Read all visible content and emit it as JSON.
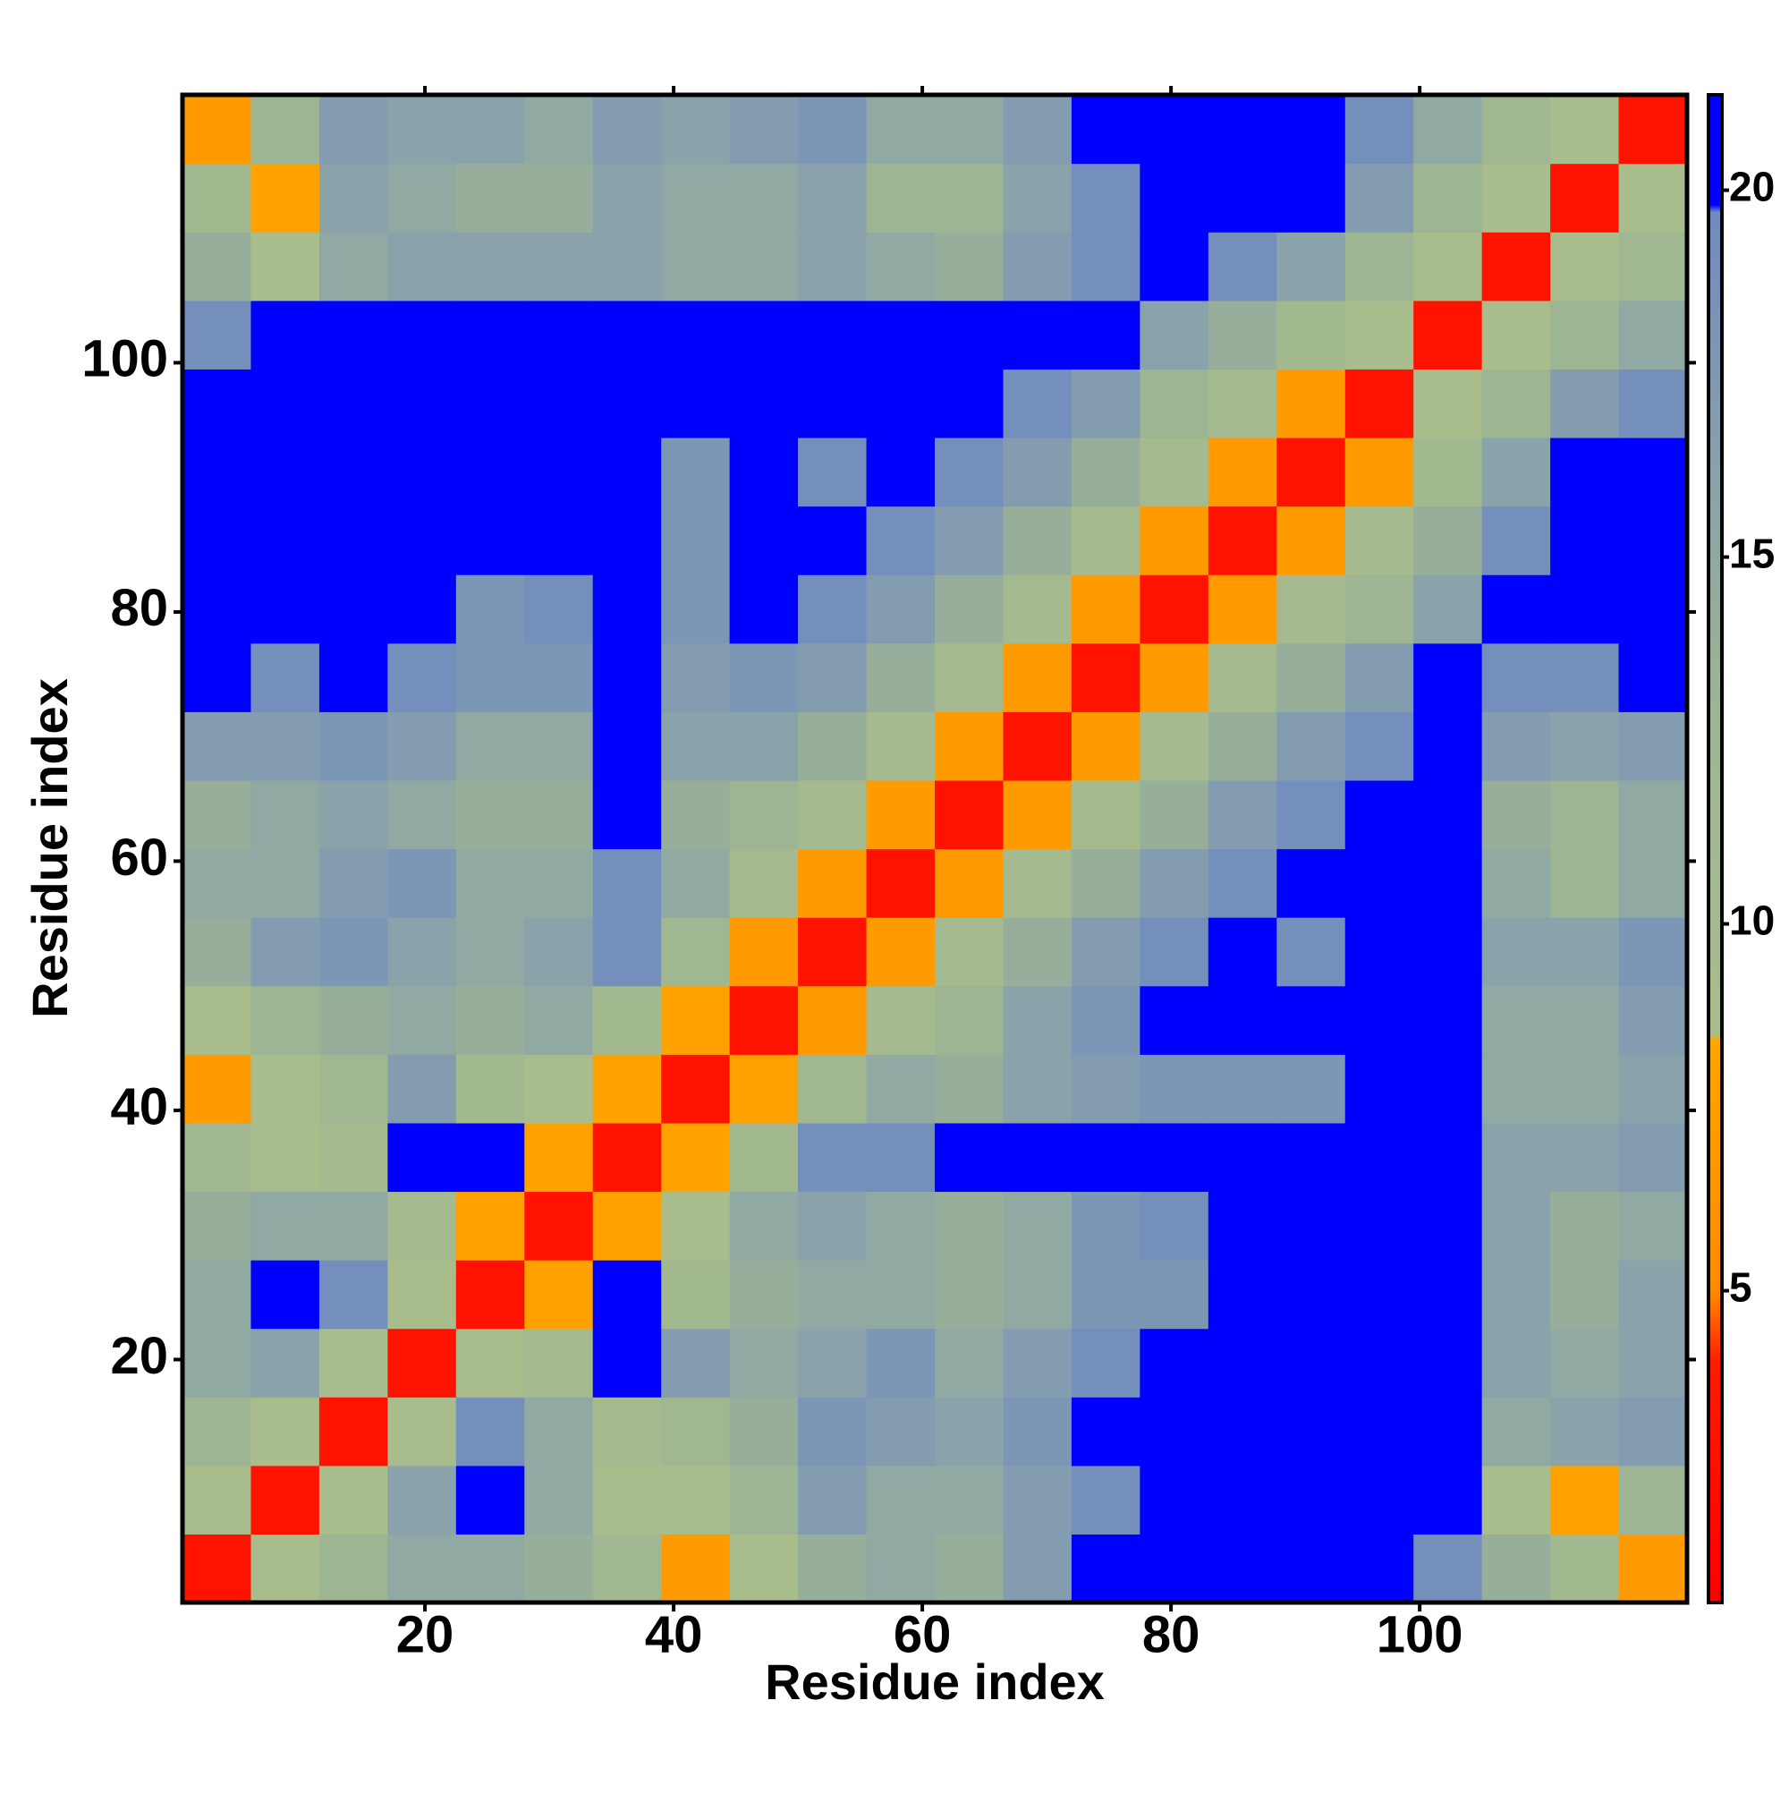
{
  "chart_data": {
    "type": "heatmap",
    "xlabel": "Residue index",
    "ylabel": "Residue index",
    "x_edges": [
      0.5,
      6,
      11.5,
      17,
      22.5,
      28,
      33.5,
      39,
      44.5,
      50,
      55.5,
      61,
      66.5,
      72,
      77.5,
      83,
      88.5,
      94,
      99.5,
      105,
      110.5,
      116,
      121.5
    ],
    "y_edges": [
      0.5,
      6,
      11.5,
      17,
      22.5,
      28,
      33.5,
      39,
      44.5,
      50,
      55.5,
      61,
      66.5,
      72,
      77.5,
      83,
      88.5,
      94,
      99.5,
      105,
      110.5,
      116,
      121.5
    ],
    "z": [
      [
        3,
        9,
        13,
        15,
        15,
        14,
        12,
        7,
        9,
        14,
        15,
        14,
        17,
        20,
        21,
        21,
        21,
        21,
        19,
        14,
        11,
        7
      ],
      [
        9,
        3,
        9,
        16,
        20,
        15,
        9,
        9,
        13,
        17,
        15,
        15,
        17,
        19,
        20,
        21,
        21,
        21,
        20,
        9,
        8,
        13
      ],
      [
        13,
        9,
        3,
        9,
        19,
        15,
        10,
        12,
        14,
        18,
        17,
        16,
        18,
        20,
        21,
        21,
        21,
        21,
        21,
        15,
        16,
        17
      ],
      [
        15,
        16,
        9,
        3,
        9,
        10,
        20,
        17,
        15,
        16,
        18,
        15,
        17,
        19,
        21,
        21,
        20,
        20,
        21,
        16,
        15,
        16
      ],
      [
        15,
        20,
        19,
        9,
        3,
        8,
        20,
        11,
        14,
        15,
        15,
        14,
        15,
        18,
        18,
        21,
        21,
        21,
        21,
        16,
        14,
        16
      ],
      [
        14,
        15,
        15,
        10,
        8,
        3,
        8,
        9,
        15,
        16,
        15,
        14,
        15,
        18,
        19,
        21,
        21,
        21,
        21,
        16,
        14,
        15
      ],
      [
        12,
        9,
        10,
        20,
        20,
        8,
        3,
        8,
        11,
        19,
        19,
        20,
        20,
        20,
        21,
        21,
        21,
        21,
        21,
        16,
        16,
        17
      ],
      [
        7,
        9,
        12,
        17,
        11,
        9,
        8,
        3,
        8,
        12,
        15,
        14,
        16,
        17,
        18,
        18,
        18,
        20,
        21,
        15,
        15,
        16
      ],
      [
        9,
        13,
        14,
        15,
        14,
        15,
        11,
        8,
        3,
        7,
        10,
        13,
        16,
        18,
        20,
        20,
        20,
        20,
        21,
        15,
        15,
        17
      ],
      [
        14,
        17,
        18,
        16,
        15,
        16,
        19,
        12,
        7,
        3,
        7,
        10,
        14,
        17,
        19,
        20,
        19,
        20,
        21,
        16,
        16,
        18
      ],
      [
        15,
        15,
        17,
        18,
        15,
        15,
        19,
        15,
        10,
        7,
        3,
        7,
        10,
        14,
        17,
        19,
        20,
        20,
        21,
        15,
        13,
        15
      ],
      [
        14,
        15,
        16,
        15,
        14,
        14,
        20,
        14,
        13,
        10,
        7,
        3,
        7,
        10,
        14,
        17,
        19,
        20,
        21,
        14,
        13,
        15
      ],
      [
        17,
        17,
        18,
        17,
        15,
        15,
        20,
        16,
        16,
        14,
        10,
        7,
        3,
        7,
        10,
        14,
        17,
        19,
        21,
        17,
        16,
        17
      ],
      [
        20,
        19,
        20,
        19,
        18,
        18,
        20,
        17,
        18,
        17,
        14,
        10,
        7,
        3,
        7,
        10,
        14,
        17,
        20,
        19,
        19,
        20
      ],
      [
        21,
        20,
        21,
        21,
        18,
        19,
        21,
        18,
        20,
        19,
        17,
        14,
        10,
        7,
        3,
        7,
        10,
        13,
        16,
        20,
        21,
        21
      ],
      [
        21,
        21,
        21,
        21,
        21,
        21,
        21,
        18,
        20,
        20,
        19,
        17,
        14,
        10,
        7,
        3,
        7,
        10,
        14,
        19,
        21,
        21
      ],
      [
        21,
        21,
        21,
        20,
        21,
        21,
        21,
        18,
        20,
        19,
        20,
        19,
        17,
        14,
        10,
        7,
        3,
        7,
        11,
        16,
        20,
        21
      ],
      [
        21,
        21,
        21,
        20,
        21,
        21,
        21,
        20,
        20,
        20,
        20,
        20,
        19,
        17,
        13,
        10,
        7,
        3,
        9,
        13,
        17,
        19
      ],
      [
        19,
        20,
        21,
        21,
        21,
        21,
        21,
        21,
        21,
        21,
        21,
        21,
        21,
        20,
        16,
        14,
        11,
        9,
        3,
        9,
        13,
        15
      ],
      [
        14,
        9,
        15,
        16,
        16,
        16,
        16,
        15,
        15,
        16,
        15,
        14,
        17,
        19,
        20,
        19,
        16,
        13,
        9,
        3,
        9,
        12
      ],
      [
        11,
        8,
        16,
        15,
        14,
        14,
        16,
        15,
        15,
        16,
        13,
        13,
        16,
        19,
        21,
        21,
        20,
        17,
        13,
        9,
        3,
        9
      ],
      [
        7,
        13,
        17,
        16,
        16,
        15,
        17,
        16,
        17,
        18,
        15,
        15,
        17,
        20,
        21,
        21,
        21,
        19,
        15,
        12,
        9,
        3
      ]
    ],
    "xlim": [
      0.5,
      121.5
    ],
    "ylim": [
      0.5,
      121.5
    ],
    "xticks": [
      20,
      40,
      60,
      80,
      100
    ],
    "yticks": [
      20,
      40,
      60,
      80,
      100
    ],
    "colorbar": {
      "zlim": [
        0.75,
        21.3
      ],
      "ticks": [
        5,
        10,
        15,
        20
      ],
      "colorscale": [
        [
          0.75,
          "#ff0000"
        ],
        [
          4,
          "#ff1a00"
        ],
        [
          5,
          "#ff8c00"
        ],
        [
          8.4,
          "#ffa500"
        ],
        [
          8.5,
          "#a9bd8b"
        ],
        [
          13,
          "#9db593"
        ],
        [
          17,
          "#839cb0"
        ],
        [
          19.7,
          "#6f8bbf"
        ],
        [
          19.8,
          "#0000ff"
        ],
        [
          21.3,
          "#0000ff"
        ]
      ]
    }
  }
}
